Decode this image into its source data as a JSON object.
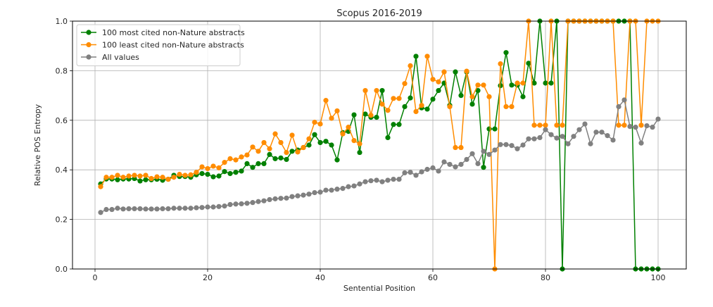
{
  "chart_data": {
    "type": "line",
    "title": "Scopus 2016-2019",
    "xlabel": "Sentential Position",
    "ylabel": "Relative POS Entropy",
    "xlim": [
      -4,
      105
    ],
    "ylim": [
      0,
      1.0
    ],
    "xticks": [
      0,
      20,
      40,
      60,
      80,
      100
    ],
    "xtick_labels": [
      "0",
      "20",
      "40",
      "60",
      "80",
      "100"
    ],
    "yticks": [
      0.0,
      0.2,
      0.4,
      0.6,
      0.8,
      1.0
    ],
    "ytick_labels": [
      "0.0",
      "0.2",
      "0.4",
      "0.6",
      "0.8",
      "1.0"
    ],
    "grid": true,
    "legend_position": "top-left",
    "series": [
      {
        "name": "100 most cited non-Nature abstracts",
        "color": "#008000",
        "x": [
          1,
          2,
          3,
          4,
          5,
          6,
          7,
          8,
          9,
          10,
          11,
          12,
          13,
          14,
          15,
          16,
          17,
          18,
          19,
          20,
          21,
          22,
          23,
          24,
          25,
          26,
          27,
          28,
          29,
          30,
          31,
          32,
          33,
          34,
          35,
          36,
          37,
          38,
          39,
          40,
          41,
          42,
          43,
          44,
          45,
          46,
          47,
          48,
          49,
          50,
          51,
          52,
          53,
          54,
          55,
          56,
          57,
          58,
          59,
          60,
          61,
          62,
          63,
          64,
          65,
          66,
          67,
          68,
          69,
          70,
          71,
          72,
          73,
          74,
          75,
          76,
          77,
          78,
          79,
          80,
          81,
          82,
          83,
          84,
          85,
          86,
          87,
          88,
          89,
          90,
          91,
          92,
          93,
          94,
          95,
          96,
          97,
          98,
          99,
          100
        ],
        "y": [
          0.343,
          0.363,
          0.363,
          0.36,
          0.363,
          0.363,
          0.365,
          0.355,
          0.36,
          0.36,
          0.362,
          0.358,
          0.362,
          0.378,
          0.373,
          0.373,
          0.37,
          0.38,
          0.385,
          0.382,
          0.372,
          0.375,
          0.393,
          0.385,
          0.39,
          0.395,
          0.425,
          0.41,
          0.425,
          0.425,
          0.462,
          0.445,
          0.448,
          0.442,
          0.475,
          0.48,
          0.49,
          0.5,
          0.542,
          0.51,
          0.515,
          0.5,
          0.44,
          0.55,
          0.555,
          0.622,
          0.47,
          0.625,
          0.612,
          0.612,
          0.72,
          0.53,
          0.583,
          0.583,
          0.655,
          0.69,
          0.858,
          0.65,
          0.645,
          0.685,
          0.72,
          0.75,
          0.66,
          0.795,
          0.7,
          0.795,
          0.665,
          0.72,
          0.41,
          0.565,
          0.565,
          0.74,
          0.873,
          0.742,
          0.742,
          0.695,
          0.83,
          0.75,
          1.0,
          0.75,
          0.75,
          1.0,
          0.0,
          1.0,
          1.0,
          1.0,
          1.0,
          1.0,
          1.0,
          1.0,
          1.0,
          1.0,
          1.0,
          1.0,
          1.0,
          0.0,
          0.0,
          0.0,
          0.0,
          0.0
        ]
      },
      {
        "name": "100 least cited non-Nature abstracts",
        "color": "#ff8c00",
        "x": [
          1,
          2,
          3,
          4,
          5,
          6,
          7,
          8,
          9,
          10,
          11,
          12,
          13,
          14,
          15,
          16,
          17,
          18,
          19,
          20,
          21,
          22,
          23,
          24,
          25,
          26,
          27,
          28,
          29,
          30,
          31,
          32,
          33,
          34,
          35,
          36,
          37,
          38,
          39,
          40,
          41,
          42,
          43,
          44,
          45,
          46,
          47,
          48,
          49,
          50,
          51,
          52,
          53,
          54,
          55,
          56,
          57,
          58,
          59,
          60,
          61,
          62,
          63,
          64,
          65,
          66,
          67,
          68,
          69,
          70,
          71,
          72,
          73,
          74,
          75,
          76,
          77,
          78,
          79,
          80,
          81,
          82,
          83,
          84,
          85,
          86,
          87,
          88,
          89,
          90,
          91,
          92,
          93,
          94,
          95,
          96,
          97,
          98,
          99,
          100
        ],
        "y": [
          0.332,
          0.37,
          0.37,
          0.378,
          0.37,
          0.375,
          0.378,
          0.375,
          0.378,
          0.365,
          0.372,
          0.37,
          0.362,
          0.37,
          0.382,
          0.378,
          0.38,
          0.39,
          0.412,
          0.405,
          0.415,
          0.408,
          0.43,
          0.445,
          0.44,
          0.452,
          0.46,
          0.492,
          0.475,
          0.51,
          0.485,
          0.545,
          0.51,
          0.47,
          0.54,
          0.472,
          0.49,
          0.525,
          0.592,
          0.585,
          0.68,
          0.608,
          0.638,
          0.545,
          0.572,
          0.518,
          0.505,
          0.72,
          0.62,
          0.72,
          0.665,
          0.64,
          0.688,
          0.688,
          0.748,
          0.82,
          0.635,
          0.66,
          0.858,
          0.765,
          0.755,
          0.795,
          0.655,
          0.49,
          0.49,
          0.798,
          0.695,
          0.742,
          0.742,
          0.695,
          0.0,
          0.828,
          0.655,
          0.655,
          0.75,
          0.75,
          1.0,
          0.58,
          0.58,
          0.58,
          1.0,
          0.58,
          0.58,
          1.0,
          1.0,
          1.0,
          1.0,
          1.0,
          1.0,
          1.0,
          1.0,
          1.0,
          0.58,
          0.58,
          1.0,
          1.0,
          0.58,
          1.0,
          1.0,
          1.0
        ]
      },
      {
        "name": "All values",
        "color": "#808080",
        "x": [
          1,
          2,
          3,
          4,
          5,
          6,
          7,
          8,
          9,
          10,
          11,
          12,
          13,
          14,
          15,
          16,
          17,
          18,
          19,
          20,
          21,
          22,
          23,
          24,
          25,
          26,
          27,
          28,
          29,
          30,
          31,
          32,
          33,
          34,
          35,
          36,
          37,
          38,
          39,
          40,
          41,
          42,
          43,
          44,
          45,
          46,
          47,
          48,
          49,
          50,
          51,
          52,
          53,
          54,
          55,
          56,
          57,
          58,
          59,
          60,
          61,
          62,
          63,
          64,
          65,
          66,
          67,
          68,
          69,
          70,
          71,
          72,
          73,
          74,
          75,
          76,
          77,
          78,
          79,
          80,
          81,
          82,
          83,
          84,
          85,
          86,
          87,
          88,
          89,
          90,
          91,
          92,
          93,
          94,
          95,
          96,
          97,
          98,
          99,
          100
        ],
        "y": [
          0.228,
          0.24,
          0.24,
          0.245,
          0.242,
          0.243,
          0.243,
          0.243,
          0.242,
          0.242,
          0.242,
          0.243,
          0.243,
          0.245,
          0.245,
          0.245,
          0.245,
          0.247,
          0.248,
          0.25,
          0.25,
          0.252,
          0.254,
          0.26,
          0.262,
          0.263,
          0.265,
          0.268,
          0.272,
          0.275,
          0.28,
          0.283,
          0.285,
          0.286,
          0.292,
          0.295,
          0.298,
          0.302,
          0.308,
          0.31,
          0.318,
          0.318,
          0.322,
          0.325,
          0.332,
          0.335,
          0.343,
          0.352,
          0.356,
          0.358,
          0.352,
          0.358,
          0.362,
          0.362,
          0.388,
          0.39,
          0.378,
          0.392,
          0.402,
          0.408,
          0.395,
          0.432,
          0.422,
          0.412,
          0.422,
          0.442,
          0.465,
          0.425,
          0.475,
          0.462,
          0.48,
          0.502,
          0.502,
          0.498,
          0.485,
          0.5,
          0.525,
          0.525,
          0.53,
          0.562,
          0.542,
          0.528,
          0.535,
          0.505,
          0.535,
          0.562,
          0.585,
          0.505,
          0.552,
          0.552,
          0.538,
          0.52,
          0.655,
          0.682,
          0.575,
          0.572,
          0.508,
          0.578,
          0.572,
          0.605
        ]
      }
    ]
  }
}
